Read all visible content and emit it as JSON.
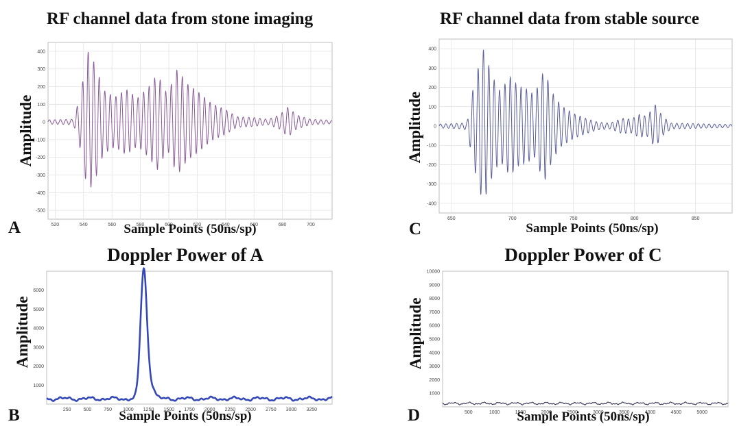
{
  "figure": {
    "panel_letters": [
      "A",
      "B",
      "C",
      "D"
    ]
  },
  "chart_data": [
    {
      "panel": "A",
      "type": "line",
      "title": "RF channel data from stone imaging",
      "xlabel": "Sample Points (50ns/sp)",
      "ylabel": "Amplitude",
      "xlim": [
        515,
        715
      ],
      "ylim": [
        -550,
        450
      ],
      "xticks": [
        520,
        540,
        560,
        580,
        600,
        620,
        640,
        660,
        680,
        700
      ],
      "yticks": [
        400,
        300,
        200,
        100,
        0,
        -100,
        -200,
        -300,
        -400,
        -500
      ],
      "grid": true,
      "color": "#8a5a9a",
      "period": 3.9,
      "envelope": [
        [
          515,
          12
        ],
        [
          533,
          15
        ],
        [
          538,
          160
        ],
        [
          543,
          400
        ],
        [
          548,
          330
        ],
        [
          554,
          180
        ],
        [
          562,
          140
        ],
        [
          570,
          185
        ],
        [
          578,
          135
        ],
        [
          586,
          200
        ],
        [
          592,
          270
        ],
        [
          599,
          155
        ],
        [
          606,
          300
        ],
        [
          613,
          215
        ],
        [
          620,
          175
        ],
        [
          630,
          105
        ],
        [
          640,
          70
        ],
        [
          648,
          30
        ],
        [
          660,
          25
        ],
        [
          670,
          15
        ],
        [
          678,
          40
        ],
        [
          684,
          85
        ],
        [
          690,
          40
        ],
        [
          700,
          15
        ],
        [
          715,
          10
        ]
      ]
    },
    {
      "panel": "B",
      "type": "line",
      "title": "Doppler Power of A",
      "xlabel": "Sample Points (50ns/sp)",
      "ylabel": "Amplitude",
      "xlim": [
        0,
        3500
      ],
      "ylim": [
        0,
        7000
      ],
      "xticks": [
        250,
        500,
        750,
        1000,
        1250,
        1500,
        1750,
        2000,
        2250,
        2500,
        2750,
        3000,
        3250
      ],
      "yticks": [
        1000,
        2000,
        3000,
        4000,
        5000,
        6000
      ],
      "grid": false,
      "color": "#3548b8",
      "baseline": 280,
      "peak": {
        "x": 1190,
        "y": 6800,
        "width": 55
      }
    },
    {
      "panel": "C",
      "type": "line",
      "title": "RF channel data from stable source",
      "xlabel": "Sample Points (50ns/sp)",
      "ylabel": "Amplitude",
      "xlim": [
        640,
        880
      ],
      "ylim": [
        -450,
        450
      ],
      "xticks": [
        650,
        700,
        750,
        800,
        850
      ],
      "yticks": [
        400,
        300,
        200,
        100,
        0,
        -100,
        -200,
        -300,
        -400
      ],
      "grid": true,
      "color": "#5a5f9a",
      "period": 4.4,
      "envelope": [
        [
          640,
          10
        ],
        [
          660,
          15
        ],
        [
          663,
          25
        ],
        [
          668,
          200
        ],
        [
          676,
          400
        ],
        [
          684,
          250
        ],
        [
          690,
          180
        ],
        [
          698,
          255
        ],
        [
          705,
          205
        ],
        [
          712,
          190
        ],
        [
          718,
          160
        ],
        [
          726,
          290
        ],
        [
          733,
          170
        ],
        [
          740,
          105
        ],
        [
          750,
          65
        ],
        [
          760,
          40
        ],
        [
          770,
          20
        ],
        [
          780,
          15
        ],
        [
          790,
          40
        ],
        [
          797,
          35
        ],
        [
          804,
          60
        ],
        [
          810,
          50
        ],
        [
          817,
          110
        ],
        [
          823,
          50
        ],
        [
          830,
          15
        ],
        [
          880,
          8
        ]
      ]
    },
    {
      "panel": "D",
      "type": "line",
      "title": "Doppler Power of C",
      "xlabel": "Sample Points (50ns/sp)",
      "ylabel": "Amplitude",
      "xlim": [
        0,
        5500
      ],
      "ylim": [
        0,
        10000
      ],
      "xticks": [
        500,
        1000,
        1500,
        2000,
        2500,
        3000,
        3500,
        4000,
        4500,
        5000
      ],
      "yticks": [
        1000,
        2000,
        3000,
        4000,
        5000,
        6000,
        7000,
        8000,
        9000,
        10000
      ],
      "grid": false,
      "color": "#3a3a5a",
      "baseline": 250
    }
  ]
}
